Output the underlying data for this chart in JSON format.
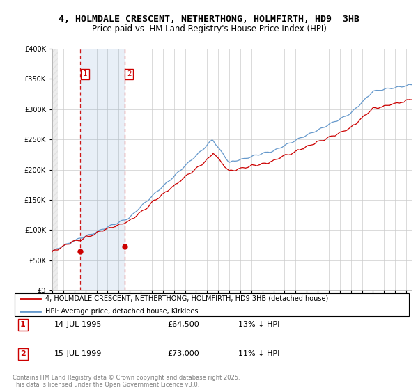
{
  "title": "4, HOLMDALE CRESCENT, NETHERTHONG, HOLMFIRTH, HD9  3HB",
  "subtitle": "Price paid vs. HM Land Registry's House Price Index (HPI)",
  "sale1_date": 1995.54,
  "sale1_price": 64500,
  "sale2_date": 1999.54,
  "sale2_price": 73000,
  "sale1_legend": "14-JUL-1995",
  "sale1_amount": "£64,500",
  "sale1_hpi": "13% ↓ HPI",
  "sale2_legend": "15-JUL-1999",
  "sale2_amount": "£73,000",
  "sale2_hpi": "11% ↓ HPI",
  "price_color": "#cc0000",
  "hpi_color": "#6699cc",
  "legend_label_price": "4, HOLMDALE CRESCENT, NETHERTHONG, HOLMFIRTH, HD9 3HB (detached house)",
  "legend_label_hpi": "HPI: Average price, detached house, Kirklees",
  "footer": "Contains HM Land Registry data © Crown copyright and database right 2025.\nThis data is licensed under the Open Government Licence v3.0.",
  "ylim": [
    0,
    400000
  ],
  "xlim_start": 1993.0,
  "xlim_end": 2025.5
}
